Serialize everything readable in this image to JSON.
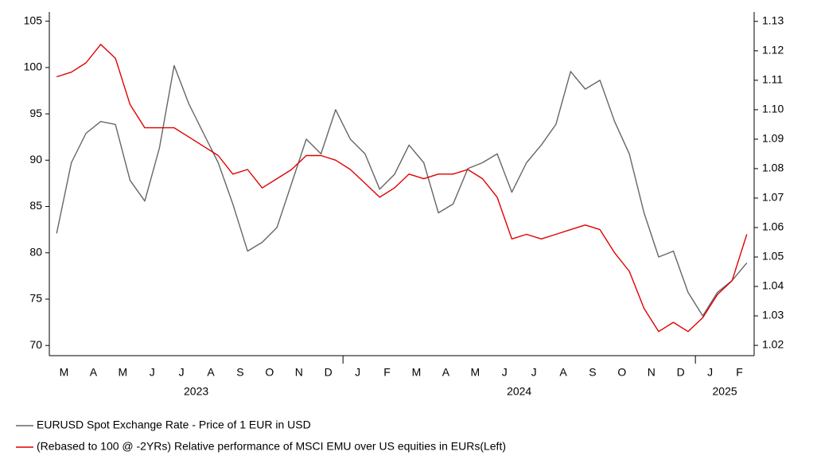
{
  "chart_data": {
    "type": "line",
    "categories": [
      "M",
      null,
      "A",
      null,
      "M",
      null,
      "J",
      null,
      "J",
      null,
      "A",
      null,
      "S",
      null,
      "O",
      null,
      "N",
      null,
      "D",
      null,
      "J",
      null,
      "F",
      null,
      "M",
      null,
      "A",
      null,
      "M",
      null,
      "J",
      null,
      "J",
      null,
      "A",
      null,
      "S",
      null,
      "O",
      null,
      "N",
      null,
      "D",
      null,
      "J",
      null,
      "F",
      null
    ],
    "year_labels": [
      "2023",
      "2024",
      "2025"
    ],
    "series": [
      {
        "name": "EURUSD Spot Exchange Rate - Price of 1 EUR in USD",
        "color": "#666666",
        "axis": "y2",
        "values": [
          1.058,
          1.082,
          1.092,
          1.096,
          1.095,
          1.076,
          1.069,
          1.087,
          1.115,
          1.102,
          1.092,
          1.082,
          1.068,
          1.052,
          1.055,
          1.06,
          1.075,
          1.09,
          1.085,
          1.1,
          1.09,
          1.085,
          1.073,
          1.078,
          1.088,
          1.082,
          1.065,
          1.068,
          1.08,
          1.082,
          1.085,
          1.072,
          1.082,
          1.088,
          1.095,
          1.113,
          1.107,
          1.11,
          1.096,
          1.085,
          1.065,
          1.05,
          1.052,
          1.038,
          1.03,
          1.038,
          1.042,
          1.048
        ]
      },
      {
        "name": "(Rebased to 100 @ -2YRs) Relative performance of MSCI EMU over US equities in EURs(Left)",
        "color": "#e00000",
        "values": [
          99,
          99.5,
          100.5,
          102.5,
          101,
          96,
          93.5,
          93.5,
          93.5,
          92.5,
          91.5,
          90.5,
          88.5,
          89,
          87,
          88,
          89,
          90.5,
          90.5,
          90,
          89,
          87.5,
          86,
          87,
          88.5,
          88,
          88.5,
          88.5,
          89,
          88,
          86,
          81.5,
          82,
          81.5,
          82,
          82.5,
          83,
          82.5,
          80,
          78,
          74,
          71.5,
          72.5,
          71.5,
          73,
          75.5,
          77,
          82
        ]
      }
    ],
    "ylim": [
      68.9,
      106
    ],
    "yticks": [
      70,
      75,
      80,
      85,
      90,
      95,
      100,
      105
    ],
    "y2lim": [
      1.0165,
      1.1332
    ],
    "y2ticks": [
      1.02,
      1.03,
      1.04,
      1.05,
      1.06,
      1.07,
      1.08,
      1.09,
      {
        "value": 1.1,
        "label": "1.10"
      },
      1.11,
      1.12,
      1.13
    ],
    "legend": "bottom"
  }
}
